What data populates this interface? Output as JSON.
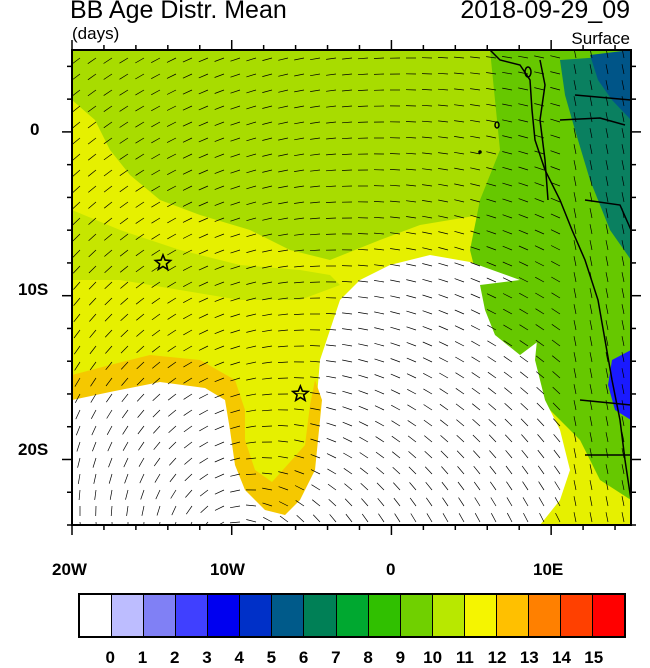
{
  "header": {
    "title": "BB Age Distr. Mean",
    "units": "(days)",
    "datetime": "2018-09-29_09",
    "level": "Surface"
  },
  "axes": {
    "lon_labels": [
      "20W",
      "10W",
      "0",
      "10E"
    ],
    "lat_labels": [
      "0",
      "10S",
      "20S"
    ]
  },
  "map": {
    "lon_range": [
      -20,
      15
    ],
    "lat_range": [
      -24,
      5
    ],
    "markers": [
      {
        "name": "star-marker",
        "lon": -14.3,
        "lat": -8.0
      },
      {
        "name": "star-marker",
        "lon": -5.7,
        "lat": -16.0
      }
    ],
    "region_colors": {
      "ocean_low": "#ffffff",
      "plume_12": "#f0f000",
      "plume_11": "#d6f000",
      "plume_13": "#f5c800",
      "plume_10": "#a8dc00",
      "land_9": "#66c800",
      "land_6": "#0a8060",
      "land_5": "#005588",
      "land_3": "#1a1aff"
    },
    "country_border_color": "#000000",
    "wind_vector_color": "#000000"
  },
  "colorbar": {
    "labels": [
      "0",
      "1",
      "2",
      "3",
      "4",
      "5",
      "6",
      "7",
      "8",
      "9",
      "10",
      "11",
      "12",
      "13",
      "14",
      "15"
    ],
    "colors": [
      "#ffffff",
      "#bdbdff",
      "#8080f5",
      "#4040ff",
      "#0000f0",
      "#0030c8",
      "#005a8a",
      "#008056",
      "#00a830",
      "#30c000",
      "#70d000",
      "#b8e800",
      "#f5f500",
      "#ffc000",
      "#ff8000",
      "#ff4000",
      "#ff0000"
    ]
  }
}
